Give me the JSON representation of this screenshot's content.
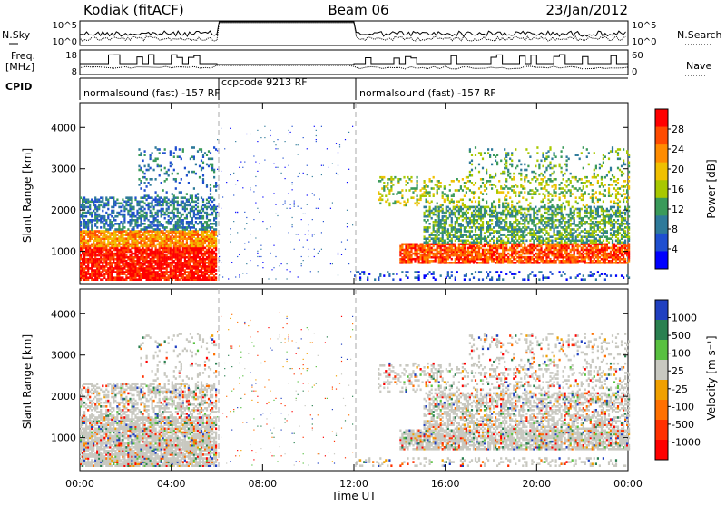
{
  "header": {
    "station": "Kodiak (fitACF)",
    "beam": "Beam 06",
    "date": "23/Jan/2012"
  },
  "left_labels": {
    "nsky": "N.Sky",
    "freq": "Freq.",
    "freq_unit": "[MHz]",
    "cpid": "CPID"
  },
  "right_labels": {
    "nsearch": "N.Search",
    "nave": "Nave"
  },
  "nsky_ticks": [
    "10^5",
    "10^0"
  ],
  "nsearch_ticks": [
    "10^5",
    "10^0"
  ],
  "freq_ticks": [
    "18",
    "8"
  ],
  "nave_ticks": [
    "60",
    "0"
  ],
  "cpid_segments": [
    {
      "label": "normalsound (fast) -157 RF",
      "start_hour": 0
    },
    {
      "label": "ccpcode 9213 RF",
      "start_hour": 6
    },
    {
      "label": "normalsound (fast) -157 RF",
      "start_hour": 12
    }
  ],
  "power_colorbar": {
    "label": "Power [dB]",
    "ticks": [
      "28",
      "24",
      "20",
      "16",
      "12",
      "8",
      "4"
    ],
    "colors": [
      "#ff0000",
      "#ff4b00",
      "#ff8c00",
      "#f0c000",
      "#a8c800",
      "#3a9a5a",
      "#2e7a9a",
      "#1f4fd0",
      "#0000ff"
    ]
  },
  "velocity_colorbar": {
    "label": "Velocity [m s⁻¹]",
    "ticks": [
      "1000",
      "500",
      "100",
      "25",
      "-25",
      "-100",
      "-500",
      "-1000"
    ],
    "colors": [
      "#2040c0",
      "#2a8050",
      "#58c040",
      "#c8c8c0",
      "#f0a000",
      "#ff7000",
      "#ff3000",
      "#ff0000"
    ]
  },
  "chart_data": {
    "type": "heatmap",
    "xlabel": "Time UT",
    "ylabel": "Slant Range [km]",
    "xlim": [
      0,
      24
    ],
    "ylim": [
      200,
      4600
    ],
    "x_tick_labels": [
      "00:00",
      "04:00",
      "08:00",
      "12:00",
      "16:00",
      "20:00",
      "00:00"
    ],
    "x_ticks_hours": [
      0,
      4,
      8,
      12,
      16,
      20,
      24
    ],
    "y_tick_labels": [
      "1000",
      "2000",
      "3000",
      "4000"
    ],
    "y_ticks": [
      1000,
      2000,
      3000,
      4000
    ],
    "mode_boundaries_hours": [
      6,
      12
    ],
    "panels": [
      "Power",
      "Velocity"
    ]
  }
}
